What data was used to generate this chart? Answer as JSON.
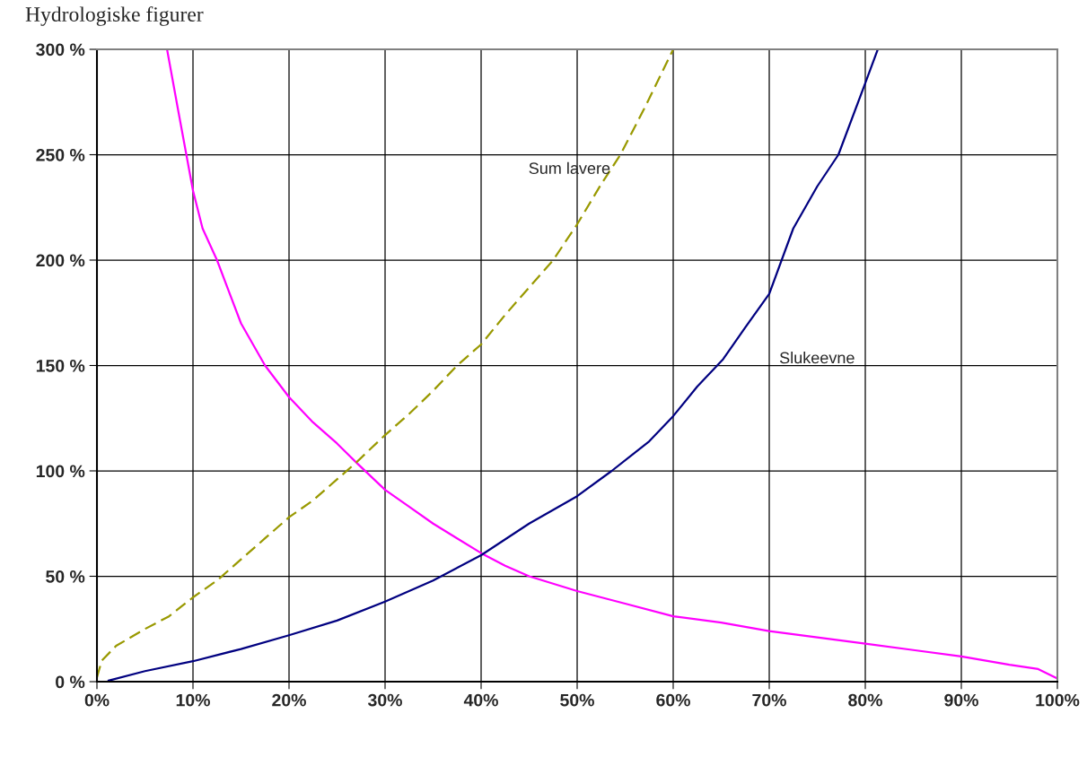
{
  "chart_data": {
    "type": "line",
    "title": "Hydrologiske figurer",
    "xlim": [
      0,
      100
    ],
    "ylim": [
      0,
      300
    ],
    "xticks": [
      {
        "value": 0,
        "label": "0%"
      },
      {
        "value": 10,
        "label": "10%"
      },
      {
        "value": 20,
        "label": "20%"
      },
      {
        "value": 30,
        "label": "30%"
      },
      {
        "value": 40,
        "label": "40%"
      },
      {
        "value": 50,
        "label": "50%"
      },
      {
        "value": 60,
        "label": "60%"
      },
      {
        "value": 70,
        "label": "70%"
      },
      {
        "value": 80,
        "label": "80%"
      },
      {
        "value": 90,
        "label": "90%"
      },
      {
        "value": 100,
        "label": "100%"
      }
    ],
    "yticks": [
      {
        "value": 0,
        "label": "0 %"
      },
      {
        "value": 50,
        "label": "50 %"
      },
      {
        "value": 100,
        "label": "100 %"
      },
      {
        "value": 150,
        "label": "150 %"
      },
      {
        "value": 200,
        "label": "200 %"
      },
      {
        "value": 250,
        "label": "250 %"
      },
      {
        "value": 300,
        "label": "300 %"
      }
    ],
    "grid": true,
    "marker": "none",
    "series": [
      {
        "color": "#ff00ff",
        "line_style": "solid",
        "x": [
          7.3,
          8.5,
          10,
          11,
          12.5,
          15,
          17.5,
          20,
          22.5,
          25,
          27,
          30,
          32.5,
          35,
          37.5,
          40,
          42.5,
          45,
          50,
          55,
          60,
          65,
          70,
          75,
          80,
          85,
          90,
          95,
          98,
          100
        ],
        "values": [
          300,
          270,
          233,
          215,
          200,
          170,
          150,
          135,
          123,
          113,
          104,
          91,
          83,
          75,
          68,
          61,
          55,
          50,
          43,
          37,
          31,
          28,
          24,
          21,
          18,
          15,
          12,
          8,
          6,
          1.5
        ]
      },
      {
        "name": "Sum lavere",
        "color": "#999900",
        "line_style": "dashed",
        "x": [
          0,
          0.5,
          2,
          5,
          7.5,
          10,
          12.5,
          15,
          17.5,
          20,
          22.5,
          25,
          27,
          30,
          32.5,
          35,
          37.5,
          40,
          42.5,
          45,
          47.5,
          50,
          52.5,
          54.5,
          57,
          60
        ],
        "values": [
          2,
          10,
          17,
          25,
          31,
          40,
          48,
          58,
          68,
          78,
          86,
          96,
          104,
          117,
          127,
          138,
          150,
          160,
          174,
          187,
          200,
          217,
          236,
          250,
          272,
          300
        ]
      },
      {
        "name": "Slukeevne",
        "color": "#000080",
        "line_style": "solid",
        "x": [
          1.2,
          5,
          10,
          15,
          20,
          25,
          30,
          35,
          40,
          45,
          50,
          53.6,
          57.5,
          60,
          62.5,
          65.2,
          67.5,
          70,
          72.5,
          75,
          77.2,
          80,
          81.3
        ],
        "values": [
          0.5,
          5,
          9.7,
          15.5,
          22,
          29,
          38,
          48,
          60,
          75,
          88,
          100,
          114,
          126,
          140,
          153,
          168,
          184,
          215,
          235,
          250,
          284,
          300
        ]
      }
    ]
  }
}
